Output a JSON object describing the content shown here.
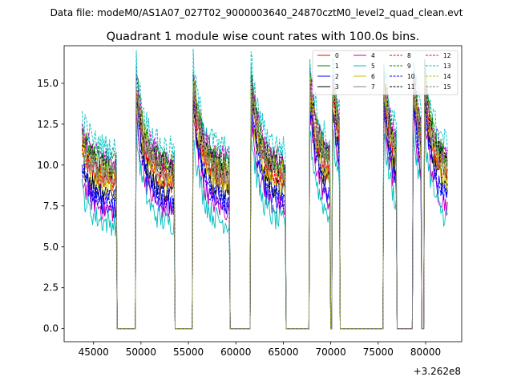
{
  "suptitle": "Data file: modeM0/AS1A07_027T02_9000003640_24870cztM0_level2_quad_clean.evt",
  "chart_data": {
    "type": "line",
    "title": "Quadrant 1 module wise count rates with 100.0s bins.",
    "xlabel": "",
    "ylabel": "",
    "x_offset_label": "+3.262e8",
    "xlim": [
      41900,
      83800
    ],
    "ylim": [
      -0.8,
      17.3
    ],
    "xticks": [
      45000,
      50000,
      55000,
      60000,
      65000,
      70000,
      75000,
      80000
    ],
    "xtick_labels": [
      "45000",
      "50000",
      "55000",
      "60000",
      "65000",
      "70000",
      "75000",
      "80000"
    ],
    "yticks": [
      0.0,
      2.5,
      5.0,
      7.5,
      10.0,
      12.5,
      15.0
    ],
    "ytick_labels": [
      "0.0",
      "2.5",
      "5.0",
      "7.5",
      "10.0",
      "12.5",
      "15.0"
    ],
    "grid": false,
    "legend_position": "top-right",
    "legend_columns": 4,
    "on_intervals": [
      [
        43800,
        47400
      ],
      [
        49500,
        53500
      ],
      [
        55500,
        59300
      ],
      [
        61600,
        65200
      ],
      [
        67800,
        69900
      ],
      [
        70200,
        70900
      ],
      [
        75600,
        76900
      ],
      [
        78700,
        79500
      ],
      [
        79900,
        82300
      ]
    ],
    "series": [
      {
        "name": "0",
        "color": "#ff0000",
        "dash": "solid",
        "level": 9.1,
        "peak": 14.5
      },
      {
        "name": "1",
        "color": "#008000",
        "dash": "solid",
        "level": 10.1,
        "peak": 15.8
      },
      {
        "name": "2",
        "color": "#0000ff",
        "dash": "solid",
        "level": 7.6,
        "peak": 13.6
      },
      {
        "name": "3",
        "color": "#000000",
        "dash": "solid",
        "level": 8.4,
        "peak": 14.2
      },
      {
        "name": "4",
        "color": "#bf00bf",
        "dash": "solid",
        "level": 7.3,
        "peak": 13.0
      },
      {
        "name": "5",
        "color": "#00bfbf",
        "dash": "solid",
        "level": 6.5,
        "peak": 12.0
      },
      {
        "name": "6",
        "color": "#bfbf00",
        "dash": "solid",
        "level": 8.8,
        "peak": 14.0
      },
      {
        "name": "7",
        "color": "#808080",
        "dash": "solid",
        "level": 9.6,
        "peak": 14.8
      },
      {
        "name": "8",
        "color": "#ff0000",
        "dash": "dashed",
        "level": 9.4,
        "peak": 14.6
      },
      {
        "name": "9",
        "color": "#008000",
        "dash": "dashed",
        "level": 10.3,
        "peak": 15.5
      },
      {
        "name": "10",
        "color": "#0000ff",
        "dash": "dashed",
        "level": 7.9,
        "peak": 13.9
      },
      {
        "name": "11",
        "color": "#000000",
        "dash": "dashed",
        "level": 9.9,
        "peak": 15.0
      },
      {
        "name": "12",
        "color": "#bf00bf",
        "dash": "dashed",
        "level": 10.5,
        "peak": 15.6
      },
      {
        "name": "13",
        "color": "#00bfbf",
        "dash": "dashed",
        "level": 11.2,
        "peak": 16.4
      },
      {
        "name": "14",
        "color": "#bfbf00",
        "dash": "dashed",
        "level": 9.7,
        "peak": 15.2
      },
      {
        "name": "15",
        "color": "#808080",
        "dash": "dashed",
        "level": 9.5,
        "peak": 14.9
      }
    ]
  }
}
